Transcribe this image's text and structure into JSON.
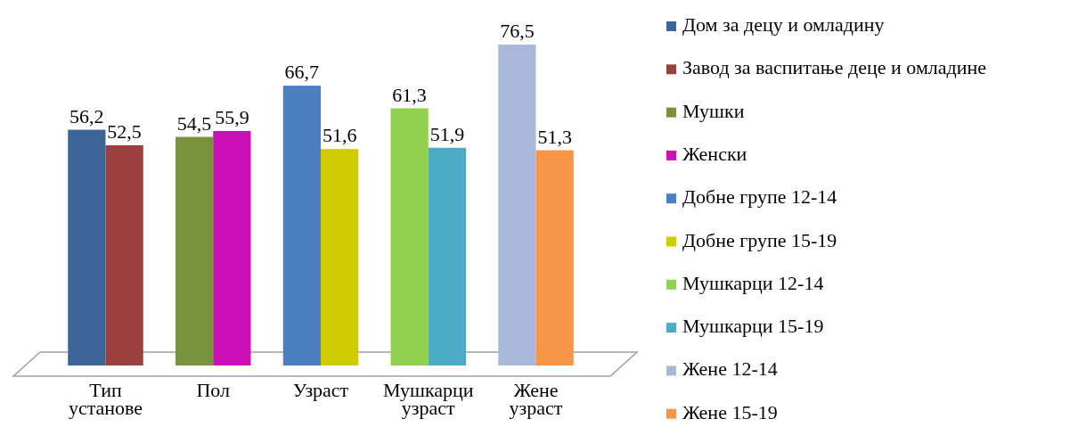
{
  "chart_data": {
    "type": "bar",
    "categories": [
      "Тип установе",
      "Пол",
      "Узраст",
      "Мушкарци узраст",
      "Жене узраст"
    ],
    "legend": "right",
    "data_labels": true,
    "series": [
      {
        "name": "Дом за децу и омладину",
        "color": "#3c6598",
        "values": [
          56.2,
          null,
          null,
          null,
          null
        ],
        "value_labels": [
          "56,2",
          null,
          null,
          null,
          null
        ]
      },
      {
        "name": "Завод за васпитање деце и омладине",
        "color": "#9b403e",
        "values": [
          52.5,
          null,
          null,
          null,
          null
        ],
        "value_labels": [
          "52,5",
          null,
          null,
          null,
          null
        ]
      },
      {
        "name": "Мушки",
        "color": "#77933c",
        "values": [
          null,
          54.5,
          null,
          null,
          null
        ],
        "value_labels": [
          null,
          "54,5",
          null,
          null,
          null
        ]
      },
      {
        "name": "Женски",
        "color": "#cc10b8",
        "values": [
          null,
          55.9,
          null,
          null,
          null
        ],
        "value_labels": [
          null,
          "55,9",
          null,
          null,
          null
        ]
      },
      {
        "name": "Добне групе 12-14",
        "color": "#4a7ebf",
        "values": [
          null,
          null,
          66.7,
          null,
          null
        ],
        "value_labels": [
          null,
          null,
          "66,7",
          null,
          null
        ]
      },
      {
        "name": "Добне групе 15-19",
        "color": "#cfcc00",
        "values": [
          null,
          null,
          51.6,
          null,
          null
        ],
        "value_labels": [
          null,
          null,
          "51,6",
          null,
          null
        ]
      },
      {
        "name": "Мушкарци 12-14",
        "color": "#92d050",
        "values": [
          null,
          null,
          null,
          61.3,
          null
        ],
        "value_labels": [
          null,
          null,
          null,
          "61,3",
          null
        ]
      },
      {
        "name": "Мушкарци 15-19",
        "color": "#4bacc6",
        "values": [
          null,
          null,
          null,
          51.9,
          null
        ],
        "value_labels": [
          null,
          null,
          null,
          "51,9",
          null
        ]
      },
      {
        "name": "Жене 12-14",
        "color": "#a9b8d8",
        "values": [
          null,
          null,
          null,
          null,
          76.5
        ],
        "value_labels": [
          null,
          null,
          null,
          null,
          "76,5"
        ]
      },
      {
        "name": "Жене 15-19",
        "color": "#f79646",
        "values": [
          null,
          null,
          null,
          null,
          51.3
        ],
        "value_labels": [
          null,
          null,
          null,
          null,
          "51,3"
        ]
      }
    ]
  }
}
